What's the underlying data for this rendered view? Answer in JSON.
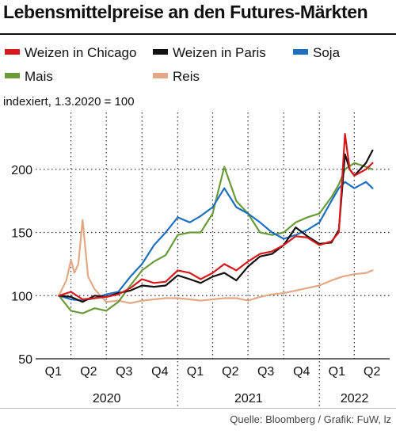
{
  "title": "Lebensmittelpreise an den Futures-Märkten",
  "subtitle": "indexiert, 1.3.2020 = 100",
  "source": "Quelle: Bloomberg / Grafik: FuW, lz",
  "colors": {
    "wheat_chicago": "#d7191c",
    "wheat_paris": "#111111",
    "soy": "#1f6fbf",
    "corn": "#6a9a3a",
    "rice": "#e3a885"
  },
  "legend": [
    {
      "label": "Weizen in Chicago",
      "color": "#d7191c"
    },
    {
      "label": "Weizen in Paris",
      "color": "#111111"
    },
    {
      "label": "Soja",
      "color": "#1f6fbf"
    },
    {
      "label": "Mais",
      "color": "#6a9a3a"
    },
    {
      "label": "Reis",
      "color": "#e3a885"
    }
  ],
  "chart_data": {
    "type": "line",
    "ylim": [
      50,
      240
    ],
    "yticks": [
      50,
      100,
      150,
      200
    ],
    "xlim": [
      "2020-01-01",
      "2022-07-01"
    ],
    "quarter_labels": [
      "Q1",
      "Q2",
      "Q3",
      "Q4",
      "Q1",
      "Q2",
      "Q3",
      "Q4",
      "Q1",
      "Q2"
    ],
    "year_labels": [
      "2020",
      "2021",
      "2022"
    ],
    "grid": true,
    "series": [
      {
        "name": "Weizen in Chicago",
        "color": "#d7191c",
        "x": [
          "2020-03-01",
          "2020-04-01",
          "2020-05-01",
          "2020-06-01",
          "2020-07-01",
          "2020-08-01",
          "2020-09-01",
          "2020-10-01",
          "2020-11-01",
          "2020-12-01",
          "2021-01-01",
          "2021-02-01",
          "2021-03-01",
          "2021-04-01",
          "2021-05-01",
          "2021-06-01",
          "2021-07-01",
          "2021-08-01",
          "2021-09-01",
          "2021-10-01",
          "2021-11-01",
          "2021-12-01",
          "2022-01-01",
          "2022-02-01",
          "2022-02-20",
          "2022-03-08",
          "2022-03-20",
          "2022-04-01",
          "2022-05-01",
          "2022-05-18"
        ],
        "y": [
          100,
          103,
          97,
          98,
          99,
          101,
          106,
          113,
          110,
          111,
          120,
          118,
          113,
          118,
          125,
          120,
          127,
          133,
          135,
          140,
          147,
          146,
          140,
          143,
          150,
          228,
          200,
          195,
          200,
          205
        ]
      },
      {
        "name": "Weizen in Paris",
        "color": "#111111",
        "x": [
          "2020-03-01",
          "2020-04-01",
          "2020-05-01",
          "2020-06-01",
          "2020-07-01",
          "2020-08-01",
          "2020-09-01",
          "2020-10-01",
          "2020-11-01",
          "2020-12-01",
          "2021-01-01",
          "2021-02-01",
          "2021-03-01",
          "2021-04-01",
          "2021-05-01",
          "2021-06-01",
          "2021-07-01",
          "2021-08-01",
          "2021-09-01",
          "2021-10-01",
          "2021-11-01",
          "2021-12-01",
          "2022-01-01",
          "2022-02-01",
          "2022-02-20",
          "2022-03-08",
          "2022-03-20",
          "2022-04-01",
          "2022-05-01",
          "2022-05-18"
        ],
        "y": [
          100,
          99,
          95,
          100,
          99,
          102,
          104,
          108,
          107,
          108,
          116,
          113,
          110,
          115,
          118,
          112,
          123,
          131,
          133,
          140,
          154,
          147,
          141,
          142,
          152,
          212,
          200,
          195,
          205,
          215
        ]
      },
      {
        "name": "Soja",
        "color": "#1f6fbf",
        "x": [
          "2020-03-01",
          "2020-04-01",
          "2020-05-01",
          "2020-06-01",
          "2020-07-01",
          "2020-08-01",
          "2020-09-01",
          "2020-10-01",
          "2020-11-01",
          "2020-12-01",
          "2021-01-01",
          "2021-02-01",
          "2021-03-01",
          "2021-04-01",
          "2021-05-01",
          "2021-06-01",
          "2021-07-01",
          "2021-08-01",
          "2021-09-01",
          "2021-10-01",
          "2021-11-01",
          "2021-12-01",
          "2022-01-01",
          "2022-02-01",
          "2022-02-20",
          "2022-03-08",
          "2022-04-01",
          "2022-05-01",
          "2022-05-18"
        ],
        "y": [
          100,
          97,
          96,
          98,
          101,
          103,
          115,
          125,
          140,
          150,
          162,
          158,
          163,
          170,
          185,
          170,
          165,
          158,
          150,
          145,
          148,
          152,
          158,
          175,
          185,
          190,
          185,
          190,
          185
        ]
      },
      {
        "name": "Mais",
        "color": "#6a9a3a",
        "x": [
          "2020-03-01",
          "2020-04-01",
          "2020-05-01",
          "2020-06-01",
          "2020-07-01",
          "2020-08-01",
          "2020-09-01",
          "2020-10-01",
          "2020-11-01",
          "2020-12-01",
          "2021-01-01",
          "2021-02-01",
          "2021-03-01",
          "2021-04-01",
          "2021-05-01",
          "2021-06-01",
          "2021-07-01",
          "2021-08-01",
          "2021-09-01",
          "2021-10-01",
          "2021-11-01",
          "2021-12-01",
          "2022-01-01",
          "2022-02-01",
          "2022-02-20",
          "2022-03-08",
          "2022-04-01",
          "2022-05-01",
          "2022-05-18"
        ],
        "y": [
          100,
          88,
          86,
          90,
          88,
          95,
          108,
          120,
          127,
          132,
          148,
          150,
          150,
          165,
          202,
          175,
          165,
          150,
          148,
          150,
          158,
          162,
          165,
          178,
          188,
          200,
          205,
          202,
          200
        ]
      },
      {
        "name": "Reis",
        "color": "#e3a885",
        "x": [
          "2020-03-01",
          "2020-03-20",
          "2020-04-01",
          "2020-04-10",
          "2020-04-20",
          "2020-05-01",
          "2020-05-15",
          "2020-06-01",
          "2020-07-01",
          "2020-08-01",
          "2020-09-01",
          "2020-10-01",
          "2020-11-01",
          "2020-12-01",
          "2021-01-01",
          "2021-02-01",
          "2021-03-01",
          "2021-04-01",
          "2021-05-01",
          "2021-06-01",
          "2021-07-01",
          "2021-08-01",
          "2021-09-01",
          "2021-10-01",
          "2021-11-01",
          "2021-12-01",
          "2022-01-01",
          "2022-02-01",
          "2022-03-01",
          "2022-04-01",
          "2022-05-01",
          "2022-05-18"
        ],
        "y": [
          100,
          112,
          128,
          118,
          125,
          160,
          115,
          105,
          95,
          96,
          94,
          96,
          97,
          98,
          98,
          97,
          96,
          97,
          98,
          98,
          96,
          99,
          101,
          102,
          104,
          106,
          108,
          112,
          115,
          117,
          118,
          120
        ]
      }
    ]
  }
}
